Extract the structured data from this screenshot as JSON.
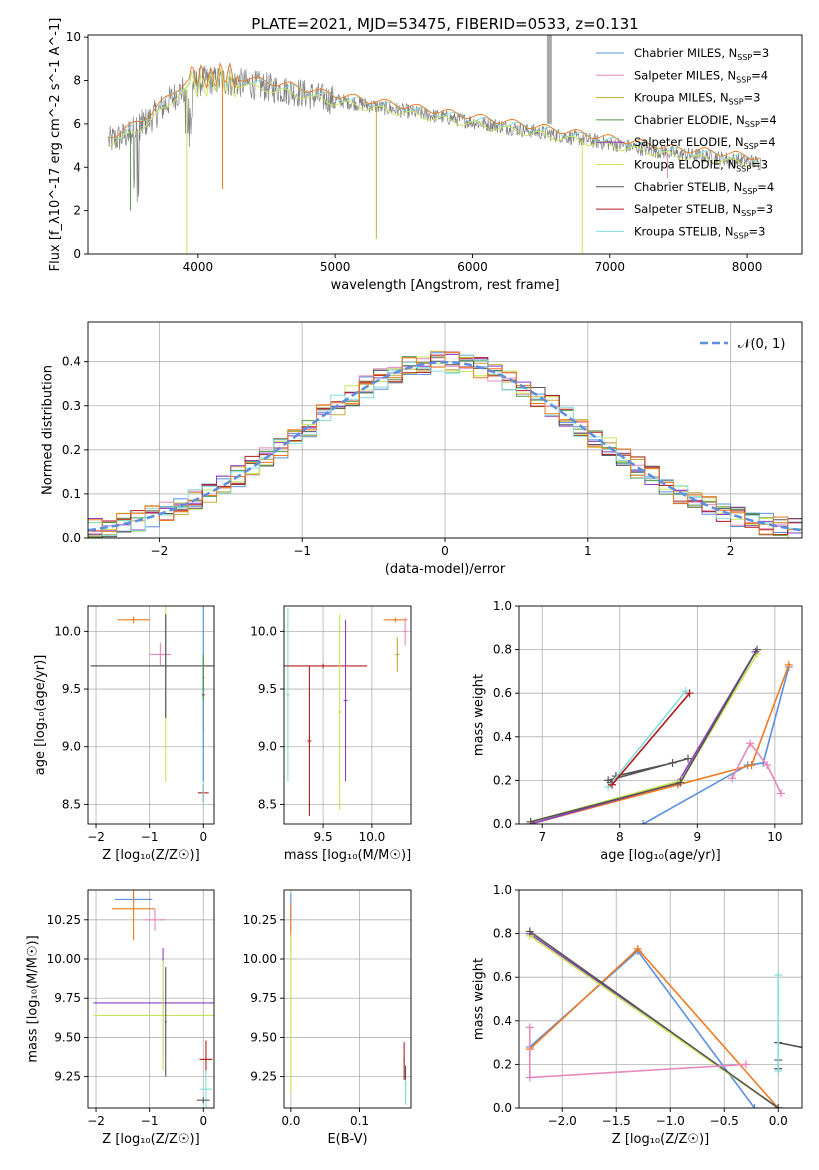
{
  "figure_title": "PLATE=2021, MJD=53475, FIBERID=0533, z=0.131",
  "colors": {
    "series": [
      "#5b8fdf",
      "#e787bd",
      "#c3a83a",
      "#4f9b4a",
      "#8e3fc2",
      "#c7e659",
      "#555555",
      "#b11d1d",
      "#86dddd"
    ],
    "spectrum_gray": "#808080",
    "orange": "#f07a22",
    "gauss": "#5b8fdf"
  },
  "chart_data": [
    {
      "id": "spectrum",
      "type": "line",
      "xlabel": "wavelength [Angstrom, rest frame]",
      "ylabel": "Flux [f_λ10^-17 erg cm^-2 s^-1 A^-1]",
      "xlim": [
        3200,
        8400
      ],
      "ylim": [
        0,
        10.1
      ],
      "xticks": [
        4000,
        5000,
        6000,
        7000,
        8000
      ],
      "yticks": [
        0,
        2,
        4,
        6,
        8,
        10
      ],
      "legend_position": "upper right",
      "legend": [
        {
          "model": "Chabrier MILES",
          "nssp": "3"
        },
        {
          "model": "Salpeter MILES",
          "nssp": "4"
        },
        {
          "model": "Kroupa MILES",
          "nssp": "3"
        },
        {
          "model": "Chabrier ELODIE",
          "nssp": "4"
        },
        {
          "model": "Salpeter ELODIE",
          "nssp": "4"
        },
        {
          "model": "Kroupa ELODIE",
          "nssp": "3"
        },
        {
          "model": "Chabrier STELIB",
          "nssp": "4"
        },
        {
          "model": "Salpeter STELIB",
          "nssp": "3"
        },
        {
          "model": "Kroupa STELIB",
          "nssp": "3"
        }
      ],
      "continuum": {
        "x": [
          3350,
          3450,
          3550,
          3650,
          3750,
          3850,
          3950,
          4050,
          4150,
          4300,
          4500,
          4700,
          4900,
          5100,
          5300,
          5500,
          5700,
          5900,
          6100,
          6300,
          6500,
          6700,
          6900,
          7100,
          7300,
          7500,
          7700,
          7900,
          8100
        ],
        "y": [
          5.2,
          5.4,
          5.8,
          6.2,
          6.8,
          7.4,
          7.8,
          8.0,
          8.0,
          7.9,
          7.7,
          7.5,
          7.2,
          7.0,
          6.8,
          6.6,
          6.4,
          6.2,
          6.0,
          5.8,
          5.6,
          5.4,
          5.2,
          5.0,
          4.8,
          4.6,
          4.5,
          4.35,
          4.2
        ]
      }
    },
    {
      "id": "residuals",
      "type": "step",
      "xlabel": "(data-model)/error",
      "ylabel": "Normed distribution",
      "xlim": [
        -2.5,
        2.5
      ],
      "ylim": [
        0,
        0.49
      ],
      "xticks": [
        -2,
        -1,
        0,
        1,
        2
      ],
      "yticks": [
        0.0,
        0.1,
        0.2,
        0.3,
        0.4
      ],
      "grid": true,
      "legend_position": "upper right",
      "legend": [
        "𝒩(0, 1)"
      ]
    },
    {
      "id": "age_vs_Z",
      "type": "errorbar",
      "xlabel": "Z [log₁₀(Z/Z☉)]",
      "ylabel": "age  [log₁₀(age/yr)]",
      "xlim": [
        -2.15,
        0.2
      ],
      "ylim": [
        8.33,
        10.22
      ],
      "xticks": [
        -2,
        -1,
        0
      ],
      "yticks": [
        8.5,
        9.0,
        9.5,
        10.0
      ],
      "grid": true,
      "points": [
        {
          "c": 1,
          "x": -0.8,
          "y": 9.8,
          "ex": 0.2,
          "ey": 0.1
        },
        {
          "c": 9,
          "x": -1.3,
          "y": 10.1,
          "ex": 0.3,
          "ey": 0.03
        },
        {
          "c": 4,
          "x": -0.7,
          "y": 9.7,
          "ex": 1.4,
          "ey": 0.45
        },
        {
          "c": 5,
          "x": -0.7,
          "y": 9.7,
          "ex": 0.1,
          "ey": 1.0
        },
        {
          "c": 6,
          "x": -0.7,
          "y": 9.7,
          "ex": 1.4,
          "ey": 0.45
        },
        {
          "c": 7,
          "x": 0.0,
          "y": 9.45,
          "ex": 0.03,
          "ey": 0.32
        },
        {
          "c": 7,
          "x": 0.0,
          "y": 8.6,
          "ex": 0.1,
          "ey": 0.08
        },
        {
          "c": 8,
          "x": 0.0,
          "y": 9.0,
          "ex": 0.02,
          "ey": 0.5
        },
        {
          "c": 0,
          "x": 0.0,
          "y": 9.5,
          "ex": 0.02,
          "ey": 0.8
        },
        {
          "c": 3,
          "x": 0.0,
          "y": 9.6,
          "ex": 0.02,
          "ey": 0.2
        }
      ]
    },
    {
      "id": "age_vs_mass",
      "type": "errorbar",
      "xlabel": "mass [log₁₀(M/M☉)]",
      "ylabel": "",
      "xlim": [
        9.1,
        10.4
      ],
      "ylim": [
        8.33,
        10.22
      ],
      "xticks": [
        9.5,
        10.0
      ],
      "yticks": [
        8.5,
        9.0,
        9.5,
        10.0
      ],
      "grid": true,
      "points": [
        {
          "c": 8,
          "x": 9.14,
          "y": 9.45,
          "ex": 0.02,
          "ey": 0.75
        },
        {
          "c": 7,
          "x": 9.36,
          "y": 9.05,
          "ex": 0.02,
          "ey": 0.65
        },
        {
          "c": 7,
          "x": 9.5,
          "y": 9.7,
          "ex": 0.45,
          "ey": 0.02
        },
        {
          "c": 5,
          "x": 9.67,
          "y": 9.3,
          "ex": 0.02,
          "ey": 0.85
        },
        {
          "c": 4,
          "x": 9.73,
          "y": 9.4,
          "ex": 0.02,
          "ey": 0.7
        },
        {
          "c": 9,
          "x": 10.24,
          "y": 10.1,
          "ex": 0.12,
          "ey": 0.02
        },
        {
          "c": 1,
          "x": 10.34,
          "y": 10.0,
          "ex": 0.02,
          "ey": 0.12
        },
        {
          "c": 2,
          "x": 10.26,
          "y": 9.8,
          "ex": 0.02,
          "ey": 0.15
        }
      ]
    },
    {
      "id": "weight_vs_age",
      "type": "line",
      "xlabel": "age  [log₁₀(age/yr)]",
      "ylabel": "mass weight",
      "xlim": [
        6.7,
        10.35
      ],
      "ylim": [
        0,
        1.0
      ],
      "xticks": [
        7,
        8,
        9,
        10
      ],
      "yticks": [
        0.0,
        0.2,
        0.4,
        0.6,
        0.8,
        1.0
      ],
      "grid": true,
      "series": [
        {
          "c": 0,
          "x": [
            8.3,
            9.65,
            9.85,
            10.18
          ],
          "y": [
            0.0,
            0.27,
            0.28,
            0.72
          ]
        },
        {
          "c": 9,
          "x": [
            6.85,
            8.75,
            9.7,
            10.18
          ],
          "y": [
            0.0,
            0.18,
            0.27,
            0.73
          ]
        },
        {
          "c": 4,
          "x": [
            6.85,
            8.75,
            9.75
          ],
          "y": [
            0.0,
            0.19,
            0.79
          ]
        },
        {
          "c": 5,
          "x": [
            6.85,
            8.8,
            9.77
          ],
          "y": [
            0.01,
            0.2,
            0.78
          ]
        },
        {
          "c": 6,
          "x": [
            6.85,
            8.78,
            9.77
          ],
          "y": [
            0.01,
            0.19,
            0.8
          ]
        },
        {
          "c": 6,
          "x": [
            7.85,
            8.88,
            8.68,
            7.95,
            7.88
          ],
          "y": [
            0.2,
            0.3,
            0.28,
            0.22,
            0.19
          ]
        },
        {
          "c": 8,
          "x": [
            7.85,
            8.85
          ],
          "y": [
            0.17,
            0.61
          ]
        },
        {
          "c": 7,
          "x": [
            7.9,
            8.9
          ],
          "y": [
            0.18,
            0.6
          ]
        },
        {
          "c": 1,
          "x": [
            9.45,
            9.68,
            9.9,
            10.08
          ],
          "y": [
            0.21,
            0.37,
            0.27,
            0.14
          ]
        }
      ]
    },
    {
      "id": "mass_vs_Z",
      "type": "errorbar",
      "xlabel": "Z [log₁₀(Z/Z☉)]",
      "ylabel": "mass [log₁₀(M/M☉)]",
      "xlim": [
        -2.15,
        0.2
      ],
      "ylim": [
        9.05,
        10.44
      ],
      "xticks": [
        -2,
        -1,
        0
      ],
      "yticks": [
        9.25,
        9.5,
        9.75,
        10.0,
        10.25
      ],
      "grid": true,
      "points": [
        {
          "c": 0,
          "x": -1.3,
          "y": 10.38,
          "ex": 0.35,
          "ey": 0.02
        },
        {
          "c": 9,
          "x": -1.3,
          "y": 10.32,
          "ex": 0.4,
          "ey": 0.2
        },
        {
          "c": 1,
          "x": -0.9,
          "y": 10.25,
          "ex": 0.2,
          "ey": 0.07
        },
        {
          "c": 4,
          "x": -0.75,
          "y": 9.72,
          "ex": 1.3,
          "ey": 0.35
        },
        {
          "c": 5,
          "x": -0.75,
          "y": 9.64,
          "ex": 1.3,
          "ey": 0.35
        },
        {
          "c": 6,
          "x": -0.7,
          "y": 9.6,
          "ex": 0.02,
          "ey": 0.35
        },
        {
          "c": 7,
          "x": 0.05,
          "y": 9.36,
          "ex": 0.12,
          "ey": 0.12
        },
        {
          "c": 8,
          "x": 0.05,
          "y": 9.17,
          "ex": 0.12,
          "ey": 0.12
        },
        {
          "c": 6,
          "x": 0.0,
          "y": 9.1,
          "ex": 0.12,
          "ey": 0.02
        }
      ]
    },
    {
      "id": "mass_vs_ebv",
      "type": "errorbar",
      "xlabel": "E(B-V)",
      "ylabel": "",
      "xlim": [
        -0.01,
        0.175
      ],
      "ylim": [
        9.05,
        10.44
      ],
      "xticks": [
        0.0,
        0.1
      ],
      "yticks": [
        9.25,
        9.5,
        9.75,
        10.0,
        10.25
      ],
      "grid": true,
      "points": [
        {
          "c": 0,
          "x": 0.0,
          "y": 10.3,
          "ex": 0.001,
          "ey": 0.12
        },
        {
          "c": 9,
          "x": 0.0,
          "y": 10.2,
          "ex": 0.001,
          "ey": 0.15
        },
        {
          "c": 5,
          "x": 0.0,
          "y": 9.65,
          "ex": 0.001,
          "ey": 0.5
        },
        {
          "c": 7,
          "x": 0.165,
          "y": 9.35,
          "ex": 0.001,
          "ey": 0.12
        },
        {
          "c": 6,
          "x": 0.167,
          "y": 9.2,
          "ex": 0.001,
          "ey": 0.12
        },
        {
          "c": 8,
          "x": 0.167,
          "y": 9.15,
          "ex": 0.001,
          "ey": 0.08
        }
      ]
    },
    {
      "id": "weight_vs_Z",
      "type": "line",
      "xlabel": "Z [log₁₀(Z/Z☉)]",
      "ylabel": "mass weight",
      "xlim": [
        -2.4,
        0.22
      ],
      "ylim": [
        0,
        1.0
      ],
      "xticks": [
        -2.0,
        -1.5,
        -1.0,
        -0.5,
        0.0
      ],
      "yticks": [
        0.0,
        0.2,
        0.4,
        0.6,
        0.8,
        1.0
      ],
      "grid": true,
      "series": [
        {
          "c": 0,
          "x": [
            -2.3,
            -1.3,
            -0.22
          ],
          "y": [
            0.28,
            0.72,
            0.0
          ]
        },
        {
          "c": 9,
          "x": [
            -2.3,
            -1.3,
            0.0
          ],
          "y": [
            0.27,
            0.73,
            0.0
          ]
        },
        {
          "c": 4,
          "x": [
            -2.3,
            0.0
          ],
          "y": [
            0.8,
            0.0
          ]
        },
        {
          "c": 5,
          "x": [
            -2.3,
            0.0
          ],
          "y": [
            0.79,
            0.0
          ]
        },
        {
          "c": 6,
          "x": [
            -2.3,
            0.0
          ],
          "y": [
            0.81,
            0.0
          ]
        },
        {
          "c": 6,
          "x": [
            0.0,
            0.3
          ],
          "y": [
            0.3,
            0.27
          ]
        },
        {
          "c": 6,
          "x": [
            0.0,
            0.0
          ],
          "y": [
            0.18,
            0.22
          ]
        },
        {
          "c": 8,
          "x": [
            0.0,
            0.0
          ],
          "y": [
            0.61,
            0.17
          ]
        },
        {
          "c": 1,
          "x": [
            -2.3,
            -2.3,
            -0.3
          ],
          "y": [
            0.37,
            0.14,
            0.2
          ]
        }
      ]
    }
  ]
}
